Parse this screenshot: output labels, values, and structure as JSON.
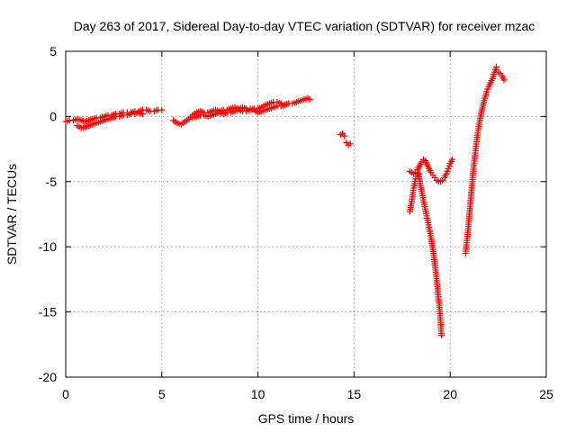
{
  "chart_data": {
    "type": "scatter",
    "title": "Day 263 of 2017, Sidereal Day-to-day VTEC variation (SDTVAR) for receiver mzac",
    "xlabel": "GPS time / hours",
    "ylabel": "SDTVAR / TECUs",
    "xlim": [
      0,
      25
    ],
    "ylim": [
      -20,
      5
    ],
    "xticks": [
      0,
      5,
      10,
      15,
      20,
      25
    ],
    "yticks": [
      -20,
      -15,
      -10,
      -5,
      0,
      5
    ],
    "xtick_labels": [
      "0",
      "5",
      "10",
      "15",
      "20",
      "25"
    ],
    "ytick_labels": [
      "-20",
      "-15",
      "-10",
      "-5",
      "0",
      "5"
    ],
    "grid": true,
    "marker": "+",
    "series": [
      {
        "name": "SDTVAR",
        "color": "#ff0000",
        "segments": [
          [
            [
              0.0,
              -0.4
            ],
            [
              0.2,
              -0.3
            ],
            [
              0.4,
              -0.3
            ],
            [
              0.6,
              -0.2
            ],
            [
              0.8,
              -0.3
            ],
            [
              1.0,
              -0.4
            ],
            [
              1.2,
              -0.3
            ],
            [
              1.4,
              -0.2
            ],
            [
              1.6,
              -0.1
            ],
            [
              1.8,
              -0.1
            ],
            [
              2.0,
              0.0
            ],
            [
              2.2,
              0.1
            ],
            [
              2.4,
              0.1
            ],
            [
              2.6,
              0.2
            ],
            [
              2.8,
              0.2
            ],
            [
              3.0,
              0.3
            ],
            [
              3.2,
              0.3
            ],
            [
              3.4,
              0.3
            ],
            [
              3.6,
              0.4
            ],
            [
              3.8,
              0.4
            ],
            [
              4.0,
              0.5
            ],
            [
              4.2,
              0.5
            ],
            [
              4.4,
              0.4
            ],
            [
              4.6,
              0.4
            ],
            [
              4.8,
              0.5
            ],
            [
              5.0,
              0.5
            ]
          ],
          [
            [
              0.6,
              -0.7
            ],
            [
              0.8,
              -0.9
            ],
            [
              1.0,
              -0.8
            ],
            [
              1.2,
              -0.7
            ],
            [
              1.4,
              -0.6
            ],
            [
              1.6,
              -0.5
            ],
            [
              1.8,
              -0.4
            ],
            [
              2.0,
              -0.3
            ],
            [
              2.2,
              -0.2
            ],
            [
              2.4,
              -0.1
            ],
            [
              2.6,
              0.0
            ],
            [
              2.8,
              0.0
            ],
            [
              3.0,
              0.1
            ],
            [
              3.2,
              0.1
            ],
            [
              3.4,
              0.2
            ],
            [
              3.6,
              0.2
            ],
            [
              3.8,
              0.3
            ],
            [
              4.0,
              0.2
            ]
          ],
          [
            [
              5.6,
              -0.3
            ],
            [
              5.8,
              -0.5
            ],
            [
              6.0,
              -0.6
            ],
            [
              6.2,
              -0.4
            ],
            [
              6.4,
              -0.2
            ],
            [
              6.6,
              0.1
            ],
            [
              6.8,
              0.3
            ],
            [
              7.0,
              0.4
            ],
            [
              7.2,
              0.3
            ],
            [
              7.4,
              0.3
            ],
            [
              7.6,
              0.4
            ],
            [
              7.8,
              0.5
            ],
            [
              8.0,
              0.4
            ],
            [
              8.2,
              0.5
            ],
            [
              8.4,
              0.5
            ],
            [
              8.6,
              0.6
            ],
            [
              8.8,
              0.7
            ],
            [
              9.0,
              0.6
            ],
            [
              9.2,
              0.7
            ],
            [
              9.4,
              0.6
            ],
            [
              9.6,
              0.6
            ],
            [
              9.8,
              0.5
            ],
            [
              10.0,
              0.3
            ],
            [
              10.2,
              0.4
            ],
            [
              10.4,
              0.5
            ],
            [
              10.6,
              0.6
            ],
            [
              10.8,
              0.7
            ],
            [
              11.0,
              0.8
            ],
            [
              11.2,
              0.8
            ],
            [
              11.4,
              0.9
            ],
            [
              11.6,
              1.0
            ],
            [
              11.8,
              1.0
            ],
            [
              12.0,
              1.1
            ],
            [
              12.2,
              1.2
            ],
            [
              12.4,
              1.3
            ],
            [
              12.6,
              1.4
            ],
            [
              12.7,
              1.3
            ]
          ],
          [
            [
              6.6,
              -0.1
            ],
            [
              6.8,
              0.0
            ],
            [
              7.0,
              0.1
            ],
            [
              7.2,
              0.1
            ],
            [
              7.4,
              0.0
            ],
            [
              7.6,
              0.1
            ],
            [
              7.8,
              0.2
            ],
            [
              8.0,
              0.3
            ],
            [
              8.2,
              0.2
            ],
            [
              8.4,
              0.3
            ],
            [
              8.6,
              0.3
            ],
            [
              8.8,
              0.4
            ],
            [
              9.0,
              0.5
            ],
            [
              9.2,
              0.4
            ],
            [
              9.4,
              0.4
            ],
            [
              9.6,
              0.5
            ],
            [
              9.8,
              0.6
            ],
            [
              10.0,
              0.6
            ],
            [
              10.2,
              0.7
            ],
            [
              10.4,
              0.9
            ],
            [
              10.6,
              1.0
            ],
            [
              10.8,
              1.1
            ],
            [
              11.0,
              1.1
            ],
            [
              11.2,
              1.0
            ]
          ],
          [
            [
              14.3,
              -1.4
            ],
            [
              14.4,
              -1.3
            ],
            [
              14.5,
              -1.5
            ]
          ],
          [
            [
              14.6,
              -2.0
            ],
            [
              14.7,
              -2.2
            ],
            [
              14.8,
              -2.1
            ]
          ],
          [
            [
              17.9,
              -7.3
            ],
            [
              18.0,
              -6.5
            ],
            [
              18.1,
              -5.5
            ],
            [
              18.2,
              -4.8
            ],
            [
              18.3,
              -4.6
            ],
            [
              18.4,
              -4.4
            ]
          ],
          [
            [
              17.9,
              -4.2
            ],
            [
              18.0,
              -4.3
            ],
            [
              18.1,
              -4.4
            ],
            [
              18.2,
              -4.3
            ],
            [
              18.3,
              -4.1
            ],
            [
              18.4,
              -3.8
            ],
            [
              18.5,
              -3.5
            ],
            [
              18.6,
              -3.3
            ],
            [
              18.7,
              -3.4
            ],
            [
              18.8,
              -3.7
            ],
            [
              18.9,
              -4.0
            ],
            [
              19.0,
              -4.3
            ],
            [
              19.1,
              -4.5
            ],
            [
              19.2,
              -4.7
            ],
            [
              19.3,
              -4.9
            ],
            [
              19.4,
              -5.0
            ],
            [
              19.5,
              -5.0
            ],
            [
              19.6,
              -4.9
            ],
            [
              19.7,
              -4.7
            ],
            [
              19.8,
              -4.4
            ],
            [
              19.9,
              -4.0
            ],
            [
              20.0,
              -3.6
            ],
            [
              20.1,
              -3.3
            ]
          ],
          [
            [
              18.3,
              -4.3
            ],
            [
              18.4,
              -4.8
            ],
            [
              18.5,
              -5.6
            ],
            [
              18.6,
              -6.4
            ],
            [
              18.7,
              -7.1
            ],
            [
              18.8,
              -7.8
            ],
            [
              18.9,
              -8.5
            ],
            [
              19.0,
              -9.3
            ],
            [
              19.1,
              -10.2
            ],
            [
              19.2,
              -11.3
            ],
            [
              19.3,
              -12.6
            ],
            [
              19.4,
              -14.0
            ],
            [
              19.45,
              -14.8
            ],
            [
              19.5,
              -15.8
            ],
            [
              19.55,
              -16.8
            ]
          ],
          [
            [
              20.8,
              -10.5
            ],
            [
              20.9,
              -9.2
            ],
            [
              21.0,
              -7.5
            ],
            [
              21.1,
              -5.8
            ],
            [
              21.2,
              -4.2
            ],
            [
              21.3,
              -2.8
            ],
            [
              21.4,
              -1.6
            ],
            [
              21.5,
              -0.6
            ],
            [
              21.6,
              0.2
            ],
            [
              21.7,
              0.8
            ],
            [
              21.8,
              1.4
            ],
            [
              21.9,
              1.9
            ],
            [
              22.0,
              2.3
            ],
            [
              22.1,
              2.6
            ],
            [
              22.2,
              2.9
            ],
            [
              22.3,
              3.4
            ],
            [
              22.4,
              3.8
            ]
          ],
          [
            [
              22.4,
              3.6
            ],
            [
              22.5,
              3.4
            ],
            [
              22.6,
              3.3
            ],
            [
              22.7,
              3.1
            ],
            [
              22.8,
              2.8
            ]
          ]
        ]
      }
    ]
  }
}
